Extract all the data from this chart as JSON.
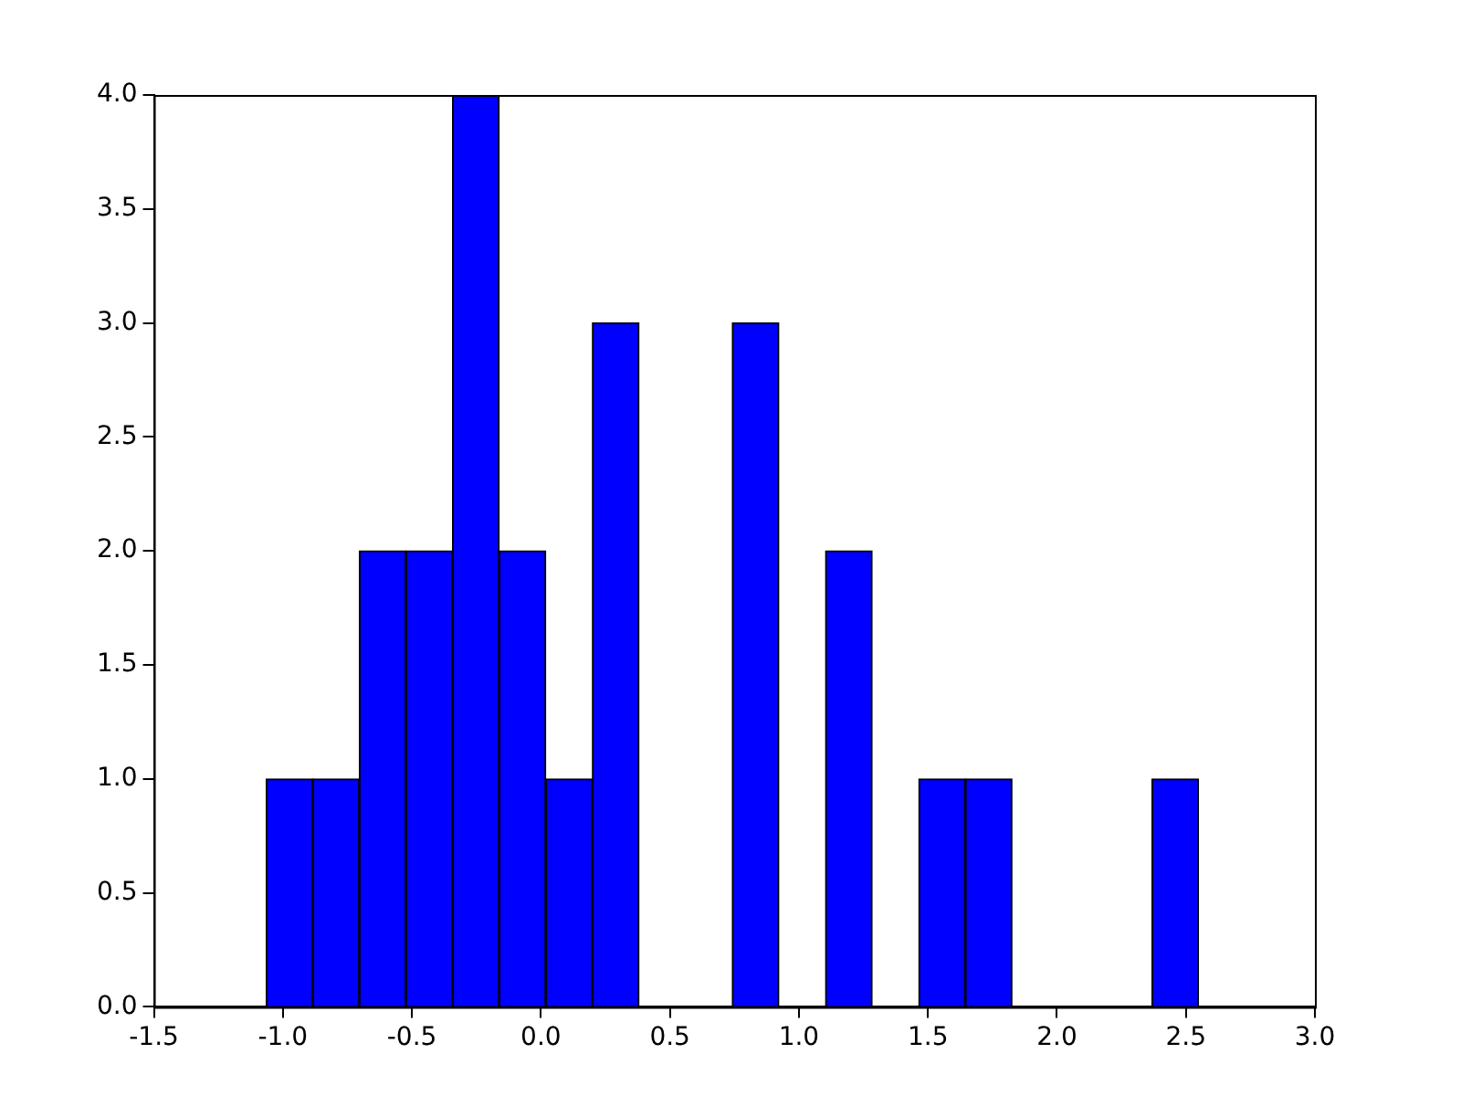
{
  "chart_data": {
    "type": "histogram",
    "bins": [
      -1.065,
      -0.884,
      -0.704,
      -0.523,
      -0.342,
      -0.162,
      0.019,
      0.2,
      0.38,
      0.561,
      0.742,
      0.922,
      1.103,
      1.284,
      1.465,
      1.645,
      1.826,
      2.007,
      2.187,
      2.368,
      2.549
    ],
    "values": [
      1,
      1,
      2,
      2,
      4,
      2,
      1,
      3,
      0,
      0,
      3,
      0,
      2,
      0,
      1,
      1,
      0,
      0,
      0,
      1
    ],
    "color": "#0000ff",
    "xlim": [
      -1.5,
      3.0
    ],
    "xticks": [
      {
        "value": -1.5,
        "label": "-1.5"
      },
      {
        "value": -1,
        "label": "-1.0"
      },
      {
        "value": -0.5,
        "label": "-0.5"
      },
      {
        "value": 0,
        "label": "0.0"
      },
      {
        "value": 0.5,
        "label": "0.5"
      },
      {
        "value": 1,
        "label": "1.0"
      },
      {
        "value": 1.5,
        "label": "1.5"
      },
      {
        "value": 2,
        "label": "2.0"
      },
      {
        "value": 2.5,
        "label": "2.5"
      },
      {
        "value": 3,
        "label": "3.0"
      }
    ],
    "ylim": [
      0,
      4.0
    ],
    "yticks": [
      {
        "value": 0,
        "label": "0.0"
      },
      {
        "value": 0.5,
        "label": "0.5"
      },
      {
        "value": 1,
        "label": "1.0"
      },
      {
        "value": 1.5,
        "label": "1.5"
      },
      {
        "value": 2,
        "label": "2.0"
      },
      {
        "value": 2.5,
        "label": "2.5"
      },
      {
        "value": 3,
        "label": "3.0"
      },
      {
        "value": 3.5,
        "label": "3.5"
      },
      {
        "value": 4,
        "label": "4.0"
      }
    ],
    "grid": false
  }
}
